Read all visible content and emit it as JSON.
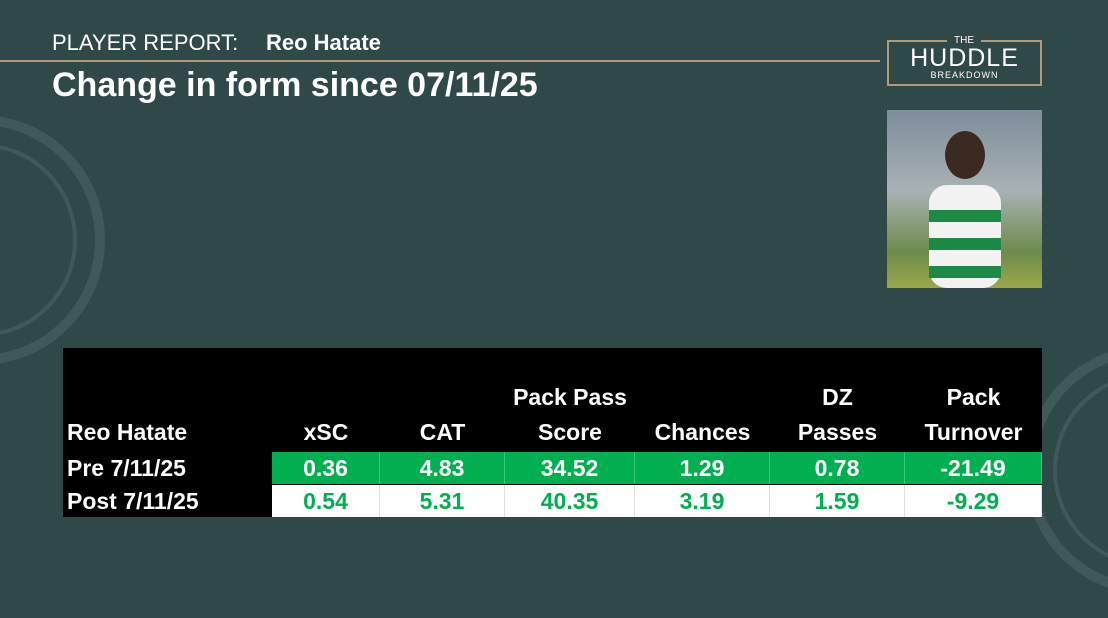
{
  "header": {
    "label": "PLAYER REPORT:",
    "player": "Reo Hatate",
    "title": "Change in form since 07/11/25"
  },
  "logo": {
    "top": "THE",
    "main": "HUDDLE",
    "bottom": "BREAKDOWN"
  },
  "table": {
    "columns": [
      [
        "Reo Hatate"
      ],
      [
        "xSC"
      ],
      [
        "CAT"
      ],
      [
        "Pack Pass",
        "Score"
      ],
      [
        "Chances"
      ],
      [
        "DZ",
        "Passes"
      ],
      [
        "Pack",
        "Turnover"
      ]
    ],
    "rows": [
      [
        "Pre 7/11/25",
        0.36,
        4.83,
        34.52,
        1.29,
        0.78,
        -21.49
      ],
      [
        "Post 7/11/25",
        0.54,
        5.31,
        40.35,
        3.19,
        1.59,
        -9.29
      ]
    ]
  }
}
